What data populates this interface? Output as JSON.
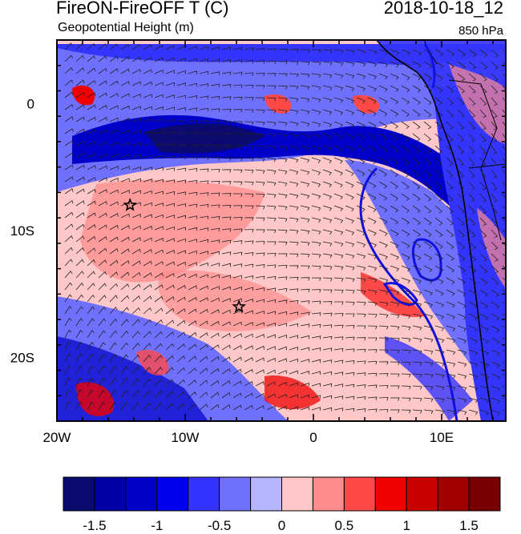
{
  "header": {
    "title_left": "FireON-FireOFF T (C)",
    "subtitle_left": "Geopotential Height (m)",
    "title_right": "2018-10-18_12",
    "subtitle_right": "850 hPa"
  },
  "map": {
    "lon_range": [
      -20,
      15
    ],
    "lat_range": [
      -25,
      5
    ],
    "x_ticks": [
      {
        "value": -20,
        "label": "20W"
      },
      {
        "value": -10,
        "label": "10W"
      },
      {
        "value": 0,
        "label": "0"
      },
      {
        "value": 10,
        "label": "10E"
      }
    ],
    "y_ticks": [
      {
        "value": 0,
        "label": "0"
      },
      {
        "value": -10,
        "label": "10S"
      },
      {
        "value": -20,
        "label": "20S"
      }
    ],
    "markers": [
      {
        "name": "star-marker-1",
        "lon": -14.3,
        "lat": -8.0
      },
      {
        "name": "star-marker-2",
        "lon": -5.8,
        "lat": -16.0
      }
    ],
    "colors": {
      "land_outline": "#000000",
      "contour": "#1010e0"
    }
  },
  "colorbar": {
    "colors": [
      "#0a0a70",
      "#0000a6",
      "#0000c8",
      "#0000f0",
      "#3434ff",
      "#7070ff",
      "#b4b4ff",
      "#ffc8c8",
      "#ff8c8c",
      "#ff4848",
      "#f00000",
      "#c80000",
      "#a00000",
      "#780000"
    ],
    "labels": [
      "-1.5",
      "-1",
      "-0.5",
      "0",
      "0.5",
      "1",
      "1.5"
    ]
  }
}
